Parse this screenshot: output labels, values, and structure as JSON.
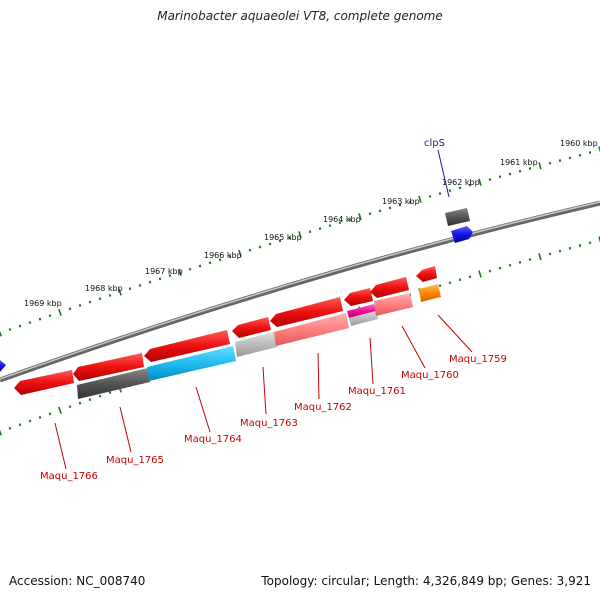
{
  "title": "Marinobacter aquaeolei VT8, complete genome",
  "footer": {
    "accession": "Accession: NC_008740",
    "summary": "Topology: circular; Length: 4,326,849 bp; Genes: 3,921"
  },
  "axis": {
    "kbp_labels": [
      "1960 kbp",
      "1961 kbp",
      "1962 kbp",
      "1963 kbp",
      "1964 kbp",
      "1965 kbp",
      "1966 kbp",
      "1967 kbp",
      "1968 kbp",
      "1969 kbp"
    ]
  },
  "genes": [
    {
      "name": "clpS",
      "color": "#1a1aa6",
      "strand": "forward"
    },
    {
      "name": "Maqu_1759",
      "color": "#cc0000",
      "strand": "reverse"
    },
    {
      "name": "Maqu_1760",
      "color": "#cc0000",
      "strand": "reverse"
    },
    {
      "name": "Maqu_1761",
      "color": "#cc0000",
      "strand": "reverse"
    },
    {
      "name": "Maqu_1762",
      "color": "#cc0000",
      "strand": "reverse"
    },
    {
      "name": "Maqu_1763",
      "color": "#cc0000",
      "strand": "reverse"
    },
    {
      "name": "Maqu_1764",
      "color": "#cc0000",
      "strand": "reverse"
    },
    {
      "name": "Maqu_1765",
      "color": "#cc0000",
      "strand": "reverse"
    },
    {
      "name": "Maqu_1766",
      "color": "#cc0000",
      "strand": "reverse"
    }
  ],
  "colors": {
    "backbone": "#888888",
    "forward_gene": "#1515e0",
    "reverse_gene": "#ee1111",
    "pink_feature": "#ff8080",
    "cyan_feature": "#22bbee",
    "magenta_feature": "#ee1199",
    "orange_feature": "#ff8800",
    "grey_feature": "#555555",
    "light_grey_feature": "#bbbbbb",
    "tick": "#1a7a1a",
    "label": "#cc0000"
  }
}
